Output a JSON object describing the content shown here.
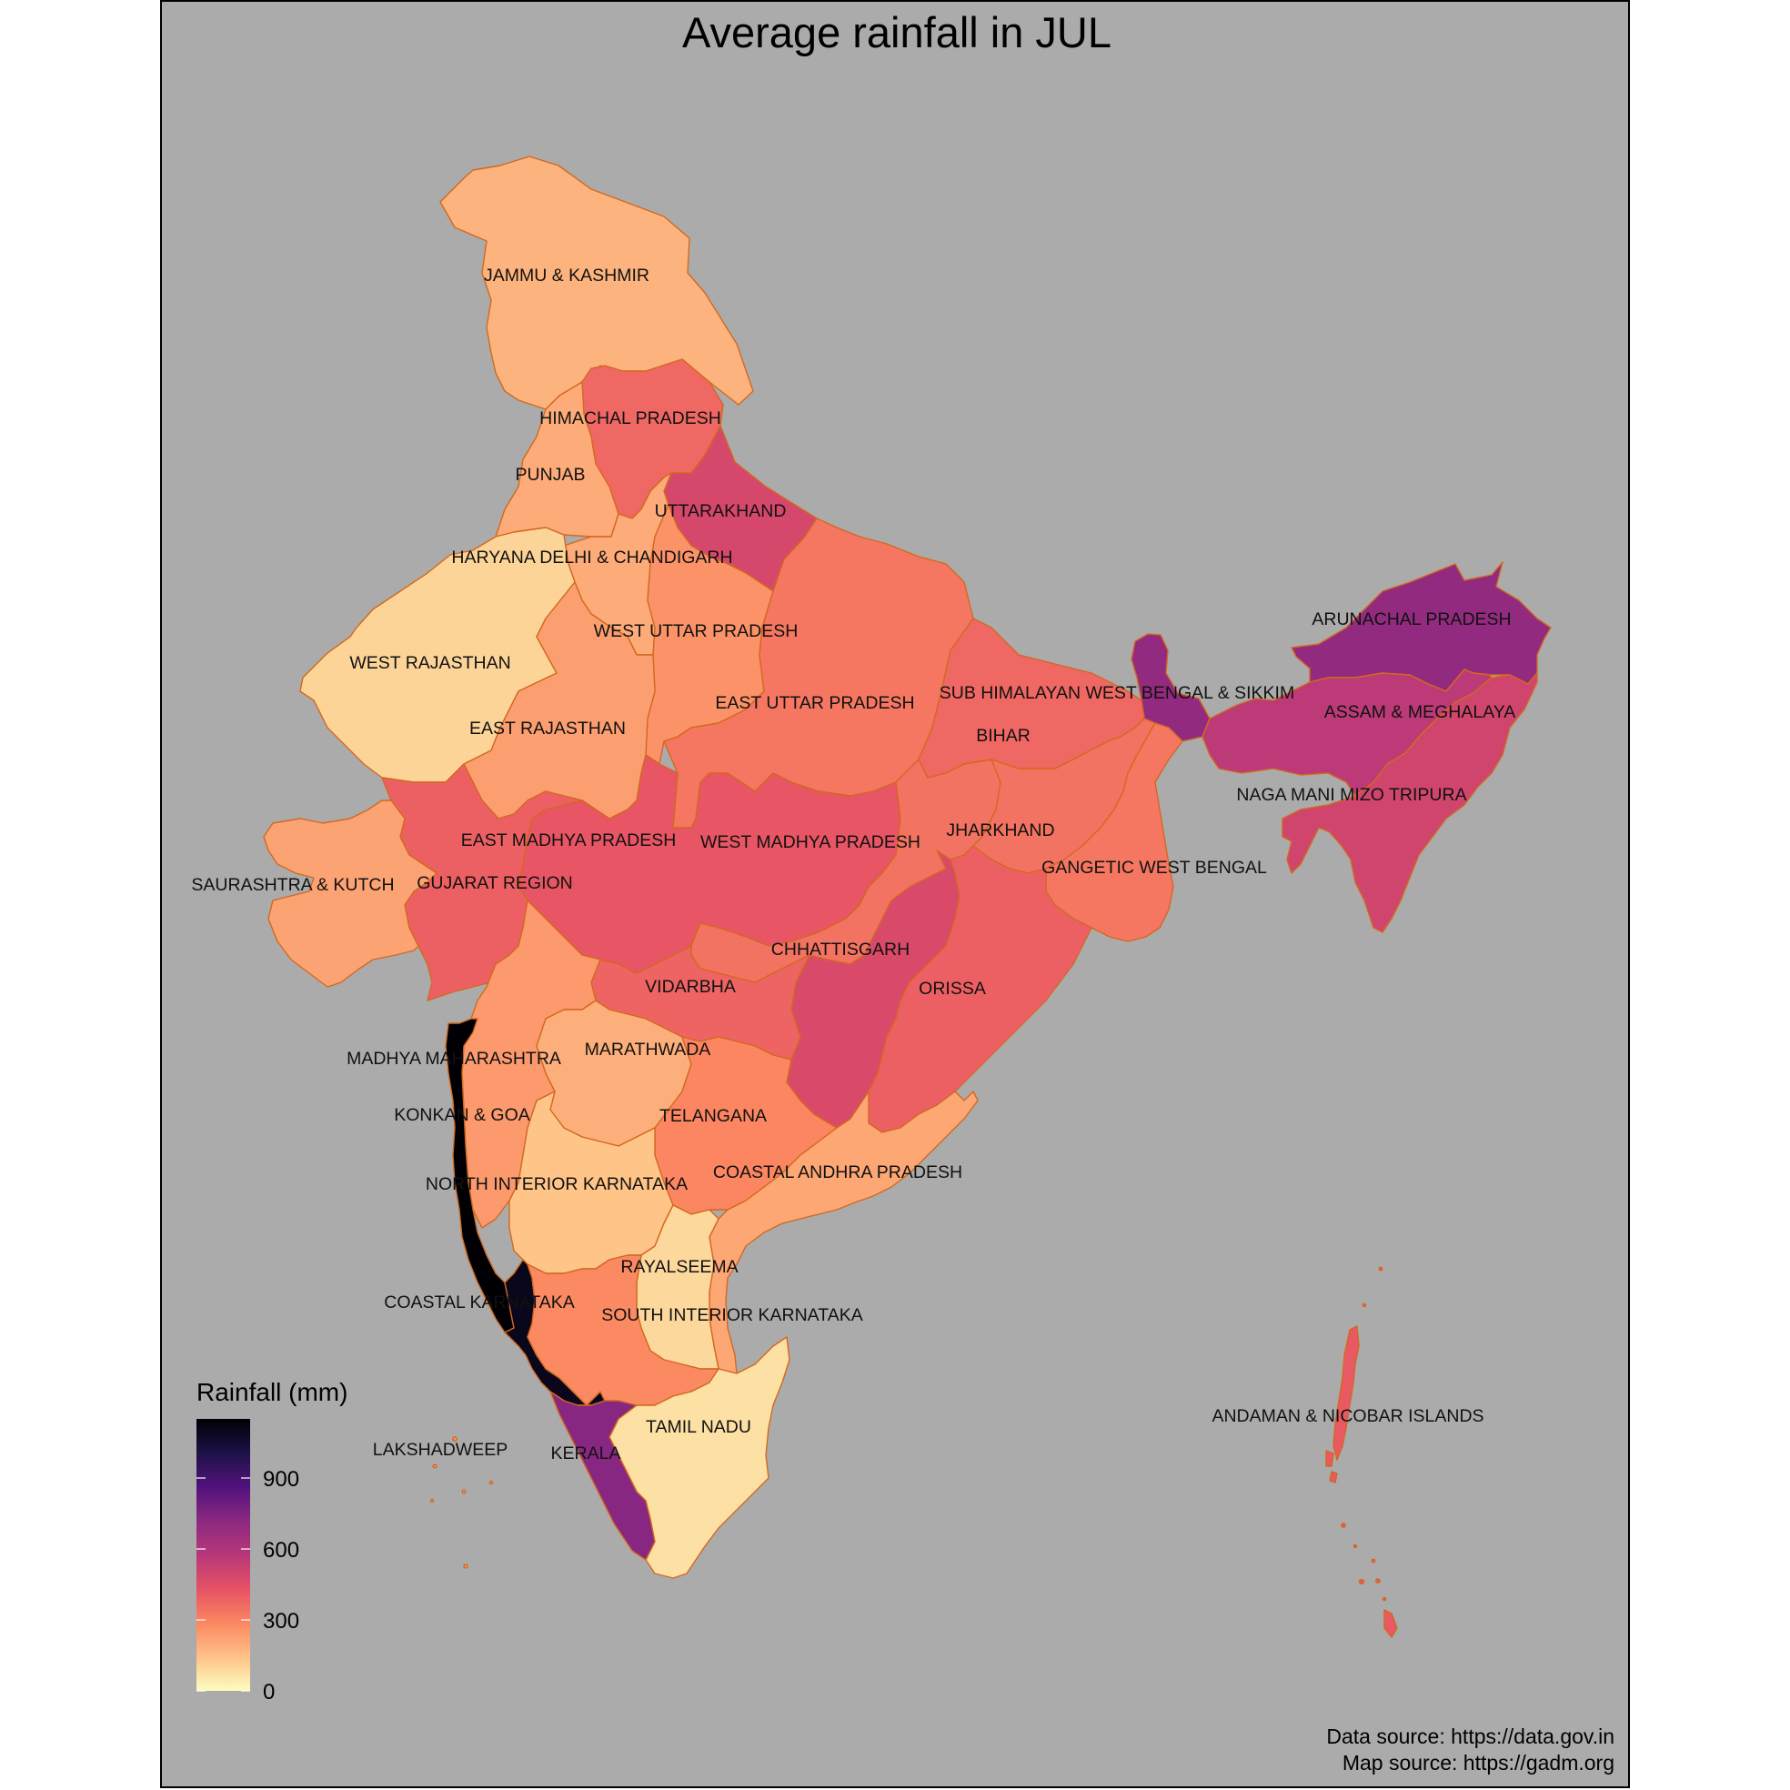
{
  "title": "Average rainfall in JUL",
  "legend": {
    "title": "Rainfall (mm)",
    "min": 0,
    "max": 1150,
    "ticks": [
      {
        "value": 0,
        "label": "0"
      },
      {
        "value": 300,
        "label": "300"
      },
      {
        "value": 600,
        "label": "600"
      },
      {
        "value": 900,
        "label": "900"
      }
    ],
    "palette": [
      "#fcfdbf",
      "#fec287",
      "#fb8761",
      "#e65164",
      "#b73779",
      "#8c2981",
      "#51127c",
      "#1d1147",
      "#000004"
    ]
  },
  "captions": {
    "data_source": "Data source: https://data.gov.in",
    "map_source": "Map source: https://gadm.org"
  },
  "subdivisions": [
    {
      "name": "JAMMU & KASHMIR",
      "rainfall": 180
    },
    {
      "name": "HIMACHAL PRADESH",
      "rainfall": 370
    },
    {
      "name": "PUNJAB",
      "rainfall": 200
    },
    {
      "name": "UTTARAKHAND",
      "rainfall": 480
    },
    {
      "name": "HARYANA DELHI & CHANDIGARH",
      "rainfall": 200
    },
    {
      "name": "WEST UTTAR PRADESH",
      "rainfall": 260
    },
    {
      "name": "WEST RAJASTHAN",
      "rainfall": 100
    },
    {
      "name": "EAST RAJASTHAN",
      "rainfall": 230
    },
    {
      "name": "EAST UTTAR PRADESH",
      "rainfall": 330
    },
    {
      "name": "SUB HIMALAYAN WEST BENGAL & SIKKIM",
      "rainfall": 700
    },
    {
      "name": "BIHAR",
      "rainfall": 370
    },
    {
      "name": "ARUNACHAL PRADESH",
      "rainfall": 700
    },
    {
      "name": "ASSAM & MEGHALAYA",
      "rainfall": 560
    },
    {
      "name": "NAGA MANI MIZO TRIPURA",
      "rainfall": 500
    },
    {
      "name": "EAST MADHYA PRADESH",
      "rainfall": 420
    },
    {
      "name": "WEST MADHYA PRADESH",
      "rainfall": 340
    },
    {
      "name": "JHARKHAND",
      "rainfall": 340
    },
    {
      "name": "GANGETIC WEST BENGAL",
      "rainfall": 330
    },
    {
      "name": "GUJARAT REGION",
      "rainfall": 390
    },
    {
      "name": "SAURASHTRA & KUTCH",
      "rainfall": 220
    },
    {
      "name": "CHHATTISGARH",
      "rainfall": 470
    },
    {
      "name": "ORISSA",
      "rainfall": 390
    },
    {
      "name": "VIDARBHA",
      "rainfall": 380
    },
    {
      "name": "MADHYA MAHARASHTRA",
      "rainfall": 240
    },
    {
      "name": "MARATHWADA",
      "rainfall": 190
    },
    {
      "name": "KONKAN & GOA",
      "rainfall": 1150
    },
    {
      "name": "TELANGANA",
      "rainfall": 290
    },
    {
      "name": "NORTH INTERIOR KARNATAKA",
      "rainfall": 140
    },
    {
      "name": "COASTAL ANDHRA PRADESH",
      "rainfall": 210
    },
    {
      "name": "RAYALSEEMA",
      "rainfall": 90
    },
    {
      "name": "COASTAL KARNATAKA",
      "rainfall": 1100
    },
    {
      "name": "SOUTH INTERIOR KARNATAKA",
      "rainfall": 280
    },
    {
      "name": "TAMIL NADU",
      "rainfall": 70
    },
    {
      "name": "KERALA",
      "rainfall": 730
    },
    {
      "name": "LAKSHADWEEP",
      "rainfall": 260
    },
    {
      "name": "ANDAMAN & NICOBAR ISLANDS",
      "rainfall": 410
    }
  ]
}
